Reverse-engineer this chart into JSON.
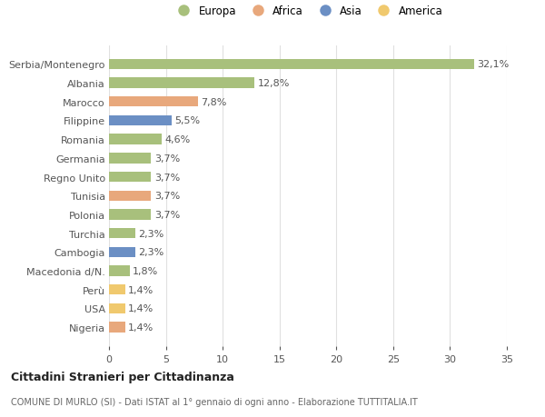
{
  "categories": [
    "Nigeria",
    "USA",
    "Perù",
    "Macedonia d/N.",
    "Cambogia",
    "Turchia",
    "Polonia",
    "Tunisia",
    "Regno Unito",
    "Germania",
    "Romania",
    "Filippine",
    "Marocco",
    "Albania",
    "Serbia/Montenegro"
  ],
  "values": [
    1.4,
    1.4,
    1.4,
    1.8,
    2.3,
    2.3,
    3.7,
    3.7,
    3.7,
    3.7,
    4.6,
    5.5,
    7.8,
    12.8,
    32.1
  ],
  "labels": [
    "1,4%",
    "1,4%",
    "1,4%",
    "1,8%",
    "2,3%",
    "2,3%",
    "3,7%",
    "3,7%",
    "3,7%",
    "3,7%",
    "4,6%",
    "5,5%",
    "7,8%",
    "12,8%",
    "32,1%"
  ],
  "colors": [
    "#e8a87c",
    "#f0c96e",
    "#f0c96e",
    "#a8c07c",
    "#6b8fc4",
    "#a8c07c",
    "#a8c07c",
    "#e8a87c",
    "#a8c07c",
    "#a8c07c",
    "#a8c07c",
    "#6b8fc4",
    "#e8a87c",
    "#a8c07c",
    "#a8c07c"
  ],
  "legend_items": [
    {
      "label": "Europa",
      "color": "#a8c07c"
    },
    {
      "label": "Africa",
      "color": "#e8a87c"
    },
    {
      "label": "Asia",
      "color": "#6b8fc4"
    },
    {
      "label": "America",
      "color": "#f0c96e"
    }
  ],
  "title1": "Cittadini Stranieri per Cittadinanza",
  "title2": "COMUNE DI MURLO (SI) - Dati ISTAT al 1° gennaio di ogni anno - Elaborazione TUTTITALIA.IT",
  "xlim": [
    0,
    35
  ],
  "xticks": [
    0,
    5,
    10,
    15,
    20,
    25,
    30,
    35
  ],
  "background_color": "#ffffff",
  "grid_color": "#e0e0e0",
  "bar_height": 0.55,
  "label_fontsize": 8,
  "ytick_fontsize": 8,
  "xtick_fontsize": 8
}
